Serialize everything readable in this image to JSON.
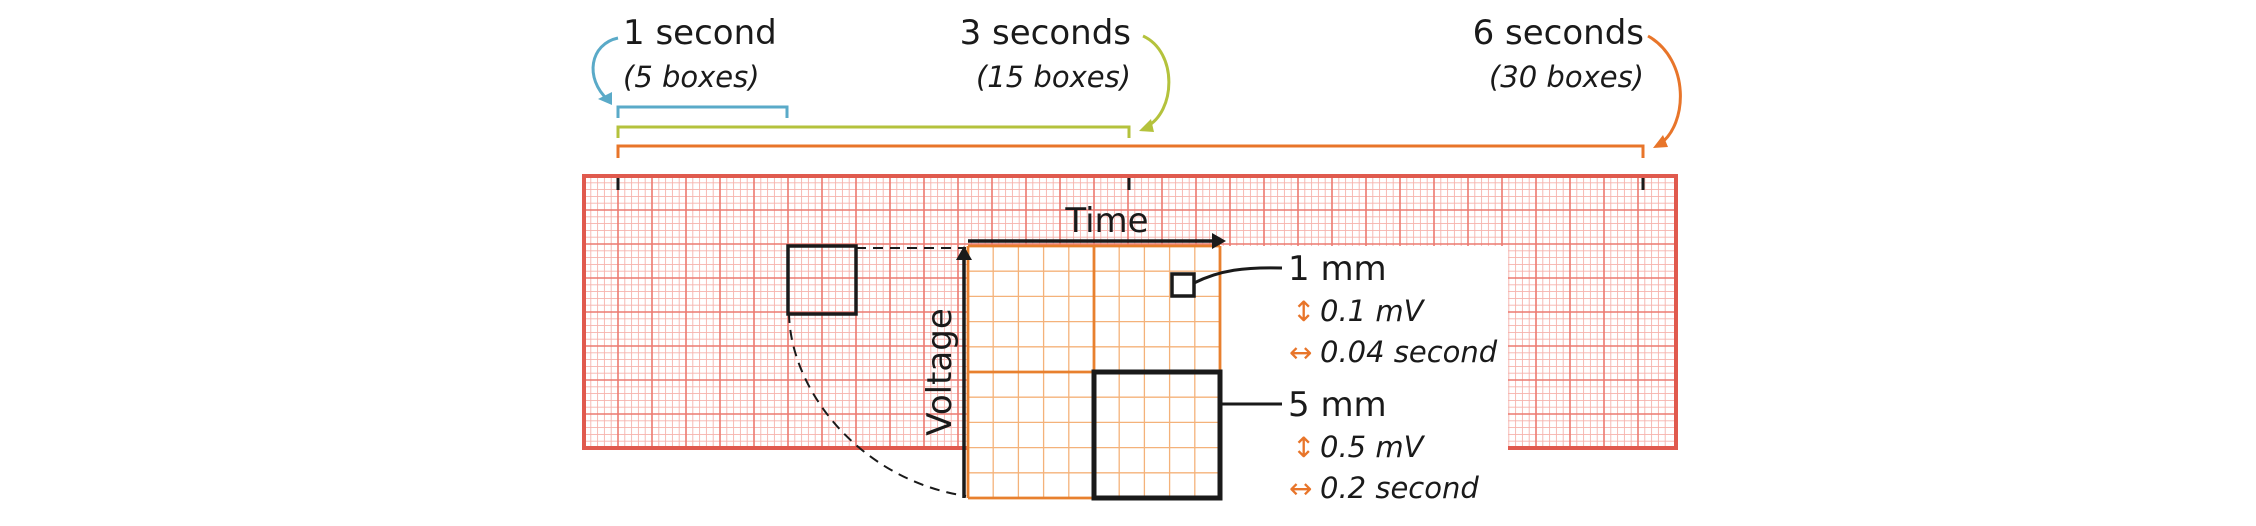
{
  "colors": {
    "blue": "#5aaac8",
    "green": "#b4c23c",
    "orange": "#e8752a",
    "red": "#e05a4e",
    "grid_fine": "#f6b2ac",
    "grid_major": "#ec7a70",
    "zoom_fine": "#f4b27a",
    "zoom_major": "#e8802e",
    "ink": "#1a1a1a"
  },
  "intervals": [
    {
      "id": "one-second",
      "title": "1 second",
      "boxes": "(5 boxes)",
      "color": "blue"
    },
    {
      "id": "three-seconds",
      "title": "3 seconds",
      "boxes": "(15 boxes)",
      "color": "green"
    },
    {
      "id": "six-seconds",
      "title": "6 seconds",
      "boxes": "(30 boxes)",
      "color": "orange"
    }
  ],
  "axes": {
    "time": "Time",
    "voltage": "Voltage"
  },
  "small_square": {
    "label": "1 mm",
    "voltage_symbol": "↕",
    "voltage": "0.1 mV",
    "time_symbol": "↔",
    "time": "0.04 second"
  },
  "large_square": {
    "label": "5 mm",
    "voltage_symbol": "↕",
    "voltage": "0.5 mV",
    "time_symbol": "↔",
    "time": "0.2 second"
  }
}
